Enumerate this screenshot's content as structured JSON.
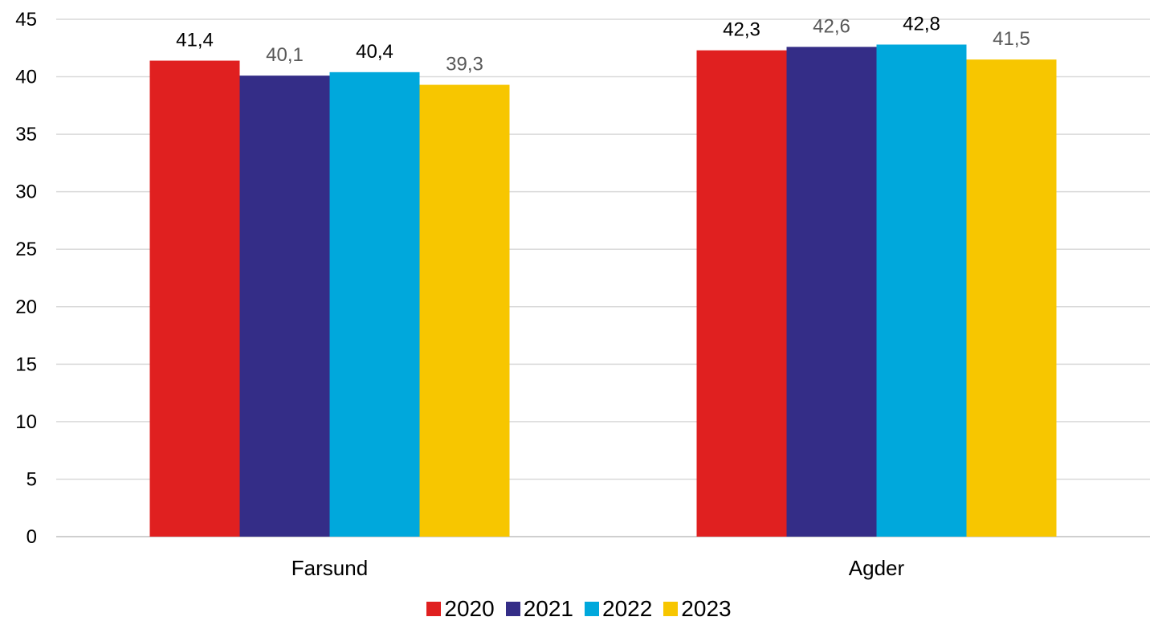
{
  "chart_data": {
    "type": "bar",
    "title": "",
    "xlabel": "",
    "ylabel": "",
    "categories": [
      "Farsund",
      "Agder"
    ],
    "ylim": [
      0,
      45
    ],
    "yticks": [
      "0",
      "5",
      "10",
      "15",
      "20",
      "25",
      "30",
      "35",
      "40",
      "45"
    ],
    "grid": true,
    "legend_position": "bottom",
    "series": [
      {
        "name": "2020",
        "color": "#e02020",
        "label_color": "#000000",
        "values": [
          41.4,
          42.3
        ],
        "labels": [
          "41,4",
          "42,3"
        ]
      },
      {
        "name": "2021",
        "color": "#342d87",
        "label_color": "#595959",
        "values": [
          40.1,
          42.6
        ],
        "labels": [
          "40,1",
          "42,6"
        ]
      },
      {
        "name": "2022",
        "color": "#00a8dc",
        "label_color": "#000000",
        "values": [
          40.4,
          42.8
        ],
        "labels": [
          "40,4",
          "42,8"
        ]
      },
      {
        "name": "2023",
        "color": "#f7c600",
        "label_color": "#595959",
        "values": [
          39.3,
          41.5
        ],
        "labels": [
          "39,3",
          "41,5"
        ]
      }
    ]
  }
}
